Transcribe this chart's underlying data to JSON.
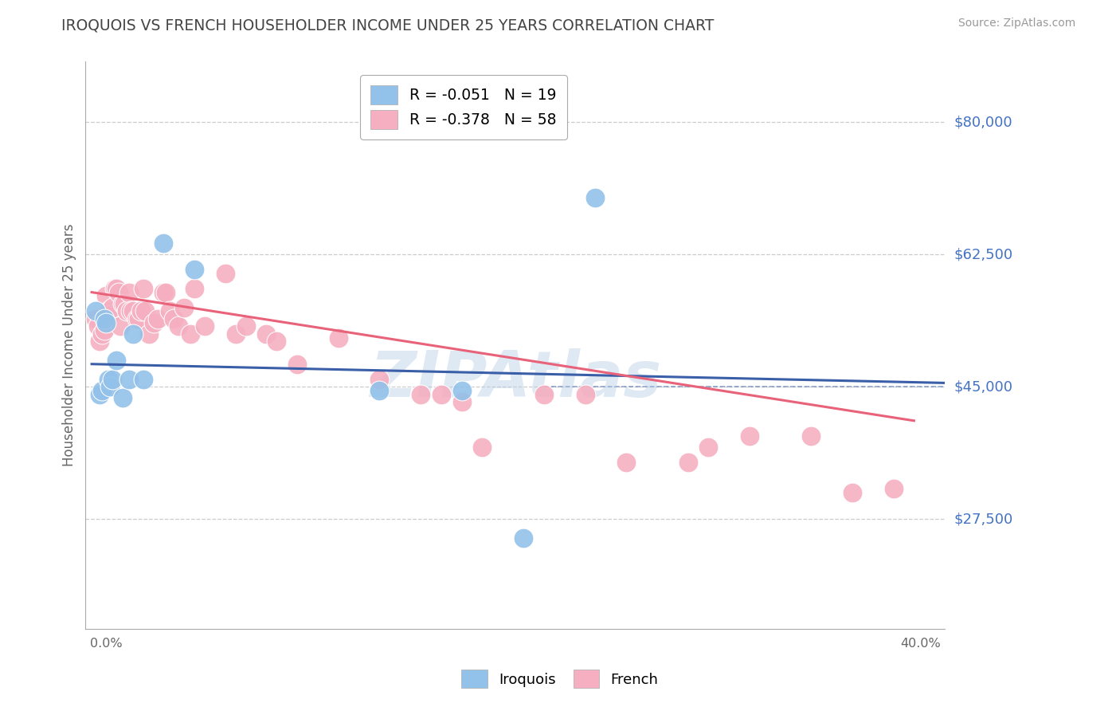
{
  "title": "IROQUOIS VS FRENCH HOUSEHOLDER INCOME UNDER 25 YEARS CORRELATION CHART",
  "source": "Source: ZipAtlas.com",
  "ylabel": "Householder Income Under 25 years",
  "ytick_labels": [
    "$27,500",
    "$45,000",
    "$62,500",
    "$80,000"
  ],
  "ytick_values": [
    27500,
    45000,
    62500,
    80000
  ],
  "ymin": 13000,
  "ymax": 88000,
  "xmin": -0.003,
  "xmax": 0.415,
  "legend_iroquois": "R = -0.051   N = 19",
  "legend_french": "R = -0.378   N = 58",
  "iroquois_color": "#92c1e9",
  "french_color": "#f5afc0",
  "iroquois_line_color": "#3a5fa8",
  "french_line_color": "#e8627a",
  "iroquois_scatter_x": [
    0.002,
    0.004,
    0.005,
    0.006,
    0.007,
    0.008,
    0.009,
    0.01,
    0.012,
    0.015,
    0.018,
    0.02,
    0.025,
    0.035,
    0.05,
    0.14,
    0.18,
    0.21,
    0.245
  ],
  "iroquois_scatter_y": [
    55000,
    44000,
    44500,
    54000,
    53500,
    46000,
    45000,
    46000,
    48500,
    43500,
    46000,
    52000,
    46000,
    64000,
    60500,
    44500,
    44500,
    25000,
    70000
  ],
  "french_scatter_x": [
    0.002,
    0.003,
    0.004,
    0.005,
    0.006,
    0.007,
    0.008,
    0.009,
    0.009,
    0.01,
    0.011,
    0.012,
    0.013,
    0.014,
    0.015,
    0.016,
    0.017,
    0.018,
    0.019,
    0.02,
    0.022,
    0.023,
    0.024,
    0.025,
    0.026,
    0.028,
    0.03,
    0.032,
    0.035,
    0.036,
    0.038,
    0.04,
    0.042,
    0.045,
    0.048,
    0.05,
    0.055,
    0.065,
    0.07,
    0.075,
    0.085,
    0.09,
    0.1,
    0.12,
    0.14,
    0.16,
    0.17,
    0.18,
    0.19,
    0.22,
    0.24,
    0.26,
    0.29,
    0.3,
    0.32,
    0.35,
    0.37,
    0.39
  ],
  "french_scatter_y": [
    54000,
    53000,
    51000,
    52000,
    52500,
    57000,
    55000,
    55000,
    54500,
    55500,
    58000,
    58000,
    57500,
    53000,
    56000,
    56000,
    55000,
    57500,
    55000,
    55000,
    54000,
    54000,
    55000,
    58000,
    55000,
    52000,
    53500,
    54000,
    57500,
    57500,
    55000,
    54000,
    53000,
    55500,
    52000,
    58000,
    53000,
    60000,
    52000,
    53000,
    52000,
    51000,
    48000,
    51500,
    46000,
    44000,
    44000,
    43000,
    37000,
    44000,
    44000,
    35000,
    35000,
    37000,
    38500,
    38500,
    31000,
    31500
  ],
  "iroquois_trend_x": [
    0.0,
    0.415
  ],
  "iroquois_trend_y": [
    48000,
    45500
  ],
  "french_trend_x": [
    0.0,
    0.4
  ],
  "french_trend_y": [
    57500,
    40500
  ],
  "dashed_line_x": [
    0.22,
    0.415
  ],
  "dashed_line_y": [
    45000,
    45000
  ],
  "background_color": "#ffffff",
  "grid_color": "#cccccc",
  "title_color": "#444444",
  "axis_label_color": "#4472c4",
  "watermark_text": "ZIPAtlas",
  "watermark_color": "#b8cfe8",
  "watermark_alpha": 0.45
}
